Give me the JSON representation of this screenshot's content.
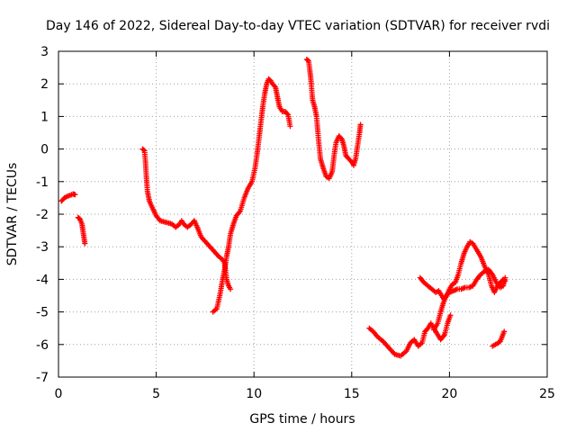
{
  "chart_data": {
    "type": "scatter",
    "title": "Day 146 of 2022, Sidereal Day-to-day VTEC variation (SDTVAR) for receiver rvdi",
    "xlabel": "GPS time / hours",
    "ylabel": "SDTVAR / TECUs",
    "xlim": [
      0,
      25
    ],
    "ylim": [
      -7,
      3
    ],
    "xticks": [
      "0",
      "5",
      "10",
      "15",
      "20",
      "25"
    ],
    "yticks": [
      "3",
      "2",
      "1",
      "0",
      "-1",
      "-2",
      "-3",
      "-4",
      "-5",
      "-6",
      "-7"
    ],
    "grid": true,
    "marker": "+",
    "color": "#ff0000",
    "series": [
      {
        "points": [
          [
            0.15,
            -1.6
          ],
          [
            0.3,
            -1.5
          ],
          [
            0.45,
            -1.45
          ],
          [
            0.6,
            -1.42
          ],
          [
            0.75,
            -1.38
          ],
          [
            0.85,
            -1.4
          ]
        ]
      },
      {
        "points": [
          [
            1.0,
            -2.1
          ],
          [
            1.1,
            -2.15
          ],
          [
            1.2,
            -2.3
          ],
          [
            1.25,
            -2.5
          ],
          [
            1.3,
            -2.7
          ],
          [
            1.35,
            -2.9
          ]
        ]
      },
      {
        "points": [
          [
            4.3,
            0.0
          ],
          [
            4.4,
            -0.05
          ],
          [
            4.45,
            -0.4
          ],
          [
            4.5,
            -0.9
          ],
          [
            4.55,
            -1.3
          ],
          [
            4.65,
            -1.6
          ],
          [
            4.8,
            -1.8
          ],
          [
            5.0,
            -2.05
          ],
          [
            5.2,
            -2.2
          ],
          [
            5.5,
            -2.25
          ],
          [
            5.8,
            -2.3
          ],
          [
            6.0,
            -2.4
          ],
          [
            6.2,
            -2.3
          ],
          [
            6.3,
            -2.2
          ],
          [
            6.4,
            -2.3
          ],
          [
            6.6,
            -2.4
          ],
          [
            6.8,
            -2.3
          ],
          [
            6.95,
            -2.2
          ],
          [
            7.1,
            -2.4
          ],
          [
            7.3,
            -2.7
          ],
          [
            7.6,
            -2.9
          ],
          [
            7.9,
            -3.1
          ],
          [
            8.2,
            -3.3
          ],
          [
            8.4,
            -3.4
          ],
          [
            8.5,
            -3.5
          ],
          [
            8.6,
            -4.0
          ],
          [
            8.7,
            -4.2
          ],
          [
            8.8,
            -4.3
          ]
        ]
      },
      {
        "points": [
          [
            7.9,
            -5.0
          ],
          [
            8.1,
            -4.9
          ],
          [
            8.25,
            -4.5
          ],
          [
            8.4,
            -4.0
          ],
          [
            8.5,
            -3.7
          ],
          [
            8.6,
            -3.3
          ],
          [
            8.7,
            -3.0
          ],
          [
            8.8,
            -2.6
          ],
          [
            8.95,
            -2.3
          ],
          [
            9.1,
            -2.05
          ],
          [
            9.3,
            -1.9
          ],
          [
            9.5,
            -1.5
          ],
          [
            9.7,
            -1.2
          ],
          [
            9.9,
            -1.0
          ],
          [
            10.05,
            -0.6
          ],
          [
            10.15,
            -0.2
          ],
          [
            10.25,
            0.3
          ],
          [
            10.35,
            0.8
          ],
          [
            10.45,
            1.3
          ],
          [
            10.55,
            1.7
          ],
          [
            10.65,
            2.0
          ],
          [
            10.75,
            2.15
          ],
          [
            10.85,
            2.1
          ],
          [
            10.95,
            2.0
          ],
          [
            11.1,
            1.9
          ],
          [
            11.2,
            1.6
          ],
          [
            11.3,
            1.3
          ],
          [
            11.45,
            1.15
          ],
          [
            11.6,
            1.15
          ],
          [
            11.75,
            1.05
          ],
          [
            11.85,
            0.7
          ]
        ]
      },
      {
        "points": [
          [
            12.7,
            2.75
          ],
          [
            12.8,
            2.7
          ],
          [
            12.9,
            2.2
          ],
          [
            13.0,
            1.5
          ],
          [
            13.1,
            1.3
          ],
          [
            13.2,
            1.0
          ],
          [
            13.3,
            0.3
          ],
          [
            13.4,
            -0.3
          ],
          [
            13.55,
            -0.6
          ],
          [
            13.7,
            -0.85
          ],
          [
            13.85,
            -0.9
          ],
          [
            14.0,
            -0.7
          ],
          [
            14.1,
            -0.2
          ],
          [
            14.2,
            0.2
          ],
          [
            14.35,
            0.4
          ],
          [
            14.5,
            0.3
          ],
          [
            14.6,
            0.1
          ],
          [
            14.7,
            -0.2
          ],
          [
            14.85,
            -0.3
          ],
          [
            15.0,
            -0.4
          ],
          [
            15.1,
            -0.5
          ],
          [
            15.2,
            -0.3
          ],
          [
            15.3,
            0.1
          ],
          [
            15.4,
            0.5
          ],
          [
            15.45,
            0.75
          ]
        ]
      },
      {
        "points": [
          [
            15.9,
            -5.5
          ],
          [
            16.1,
            -5.6
          ],
          [
            16.3,
            -5.75
          ],
          [
            16.6,
            -5.9
          ],
          [
            16.9,
            -6.1
          ],
          [
            17.2,
            -6.3
          ],
          [
            17.5,
            -6.35
          ],
          [
            17.8,
            -6.2
          ],
          [
            18.0,
            -5.95
          ],
          [
            18.2,
            -5.85
          ],
          [
            18.4,
            -6.05
          ],
          [
            18.6,
            -5.95
          ],
          [
            18.75,
            -5.6
          ],
          [
            18.9,
            -5.5
          ],
          [
            19.05,
            -5.35
          ],
          [
            19.2,
            -5.5
          ],
          [
            19.4,
            -5.7
          ],
          [
            19.55,
            -5.85
          ],
          [
            19.75,
            -5.7
          ],
          [
            19.9,
            -5.35
          ],
          [
            20.05,
            -5.1
          ]
        ]
      },
      {
        "points": [
          [
            18.5,
            -3.95
          ],
          [
            18.7,
            -4.1
          ],
          [
            18.9,
            -4.2
          ],
          [
            19.1,
            -4.3
          ],
          [
            19.3,
            -4.4
          ],
          [
            19.45,
            -4.35
          ],
          [
            19.6,
            -4.5
          ],
          [
            19.7,
            -4.6
          ],
          [
            19.85,
            -4.5
          ],
          [
            20.0,
            -4.4
          ],
          [
            20.2,
            -4.35
          ],
          [
            20.4,
            -4.3
          ],
          [
            20.6,
            -4.3
          ],
          [
            20.8,
            -4.25
          ],
          [
            21.0,
            -4.25
          ],
          [
            21.2,
            -4.2
          ],
          [
            21.4,
            -4.0
          ],
          [
            21.6,
            -3.85
          ],
          [
            21.8,
            -3.75
          ],
          [
            22.0,
            -3.7
          ],
          [
            22.2,
            -3.85
          ],
          [
            22.4,
            -4.1
          ],
          [
            22.6,
            -4.25
          ],
          [
            22.75,
            -4.2
          ],
          [
            22.85,
            -3.95
          ]
        ]
      },
      {
        "points": [
          [
            19.2,
            -5.55
          ],
          [
            19.4,
            -5.35
          ],
          [
            19.55,
            -5.0
          ],
          [
            19.7,
            -4.7
          ],
          [
            19.85,
            -4.5
          ],
          [
            20.0,
            -4.3
          ],
          [
            20.15,
            -4.15
          ],
          [
            20.3,
            -4.1
          ],
          [
            20.45,
            -3.85
          ],
          [
            20.6,
            -3.5
          ],
          [
            20.75,
            -3.2
          ],
          [
            20.9,
            -3.0
          ],
          [
            21.05,
            -2.85
          ],
          [
            21.2,
            -2.9
          ],
          [
            21.4,
            -3.1
          ],
          [
            21.6,
            -3.3
          ],
          [
            21.8,
            -3.6
          ],
          [
            22.0,
            -3.85
          ],
          [
            22.15,
            -4.2
          ],
          [
            22.3,
            -4.4
          ],
          [
            22.45,
            -4.2
          ],
          [
            22.6,
            -4.1
          ],
          [
            22.75,
            -4.0
          ],
          [
            22.85,
            -4.05
          ]
        ]
      },
      {
        "points": [
          [
            22.2,
            -6.05
          ],
          [
            22.35,
            -6.0
          ],
          [
            22.5,
            -5.95
          ],
          [
            22.6,
            -5.9
          ],
          [
            22.7,
            -5.75
          ],
          [
            22.8,
            -5.6
          ]
        ]
      }
    ]
  }
}
